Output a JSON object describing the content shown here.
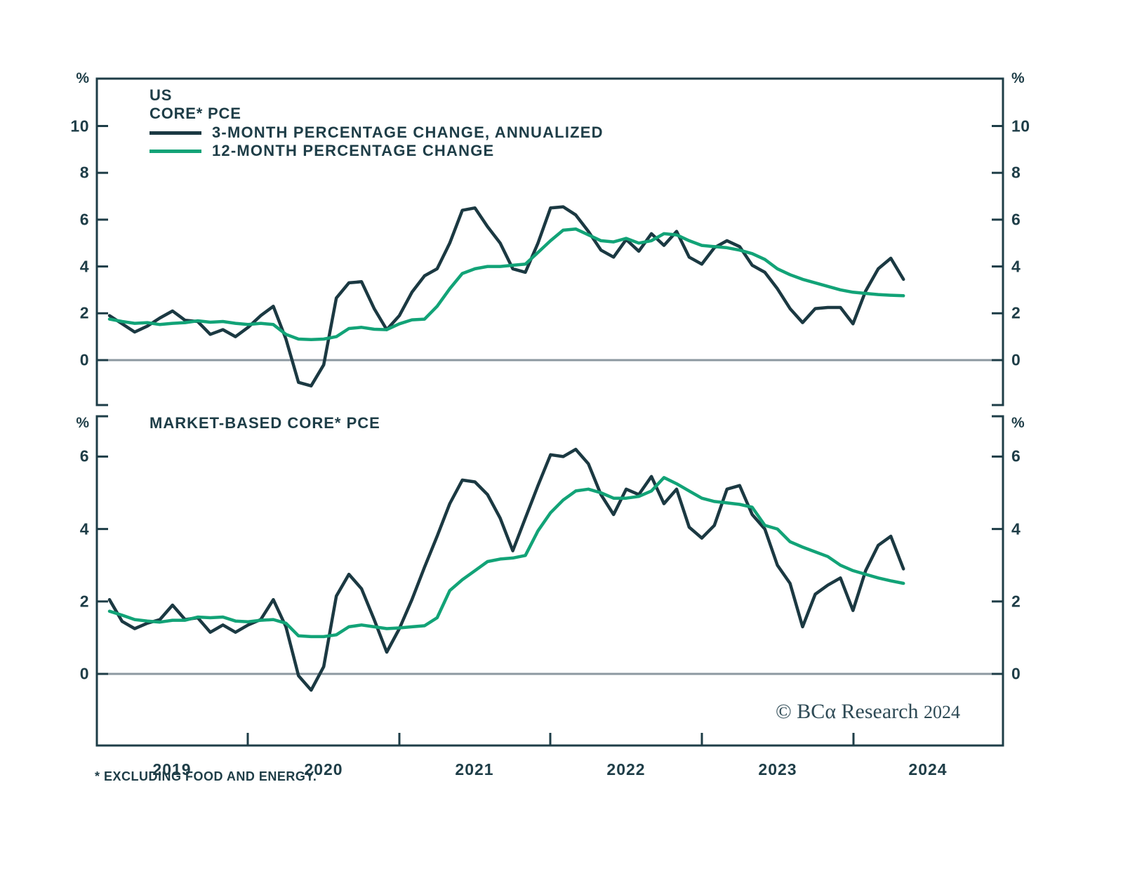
{
  "axes": {
    "percent": "%"
  },
  "top_chart": {
    "title_line1": "US",
    "title_line2": "CORE* PCE",
    "legend": [
      {
        "label": "3-MONTH PERCENTAGE CHANGE, ANNUALIZED",
        "color": "#1b3942"
      },
      {
        "label": "12-MONTH PERCENTAGE CHANGE",
        "color": "#12a377"
      }
    ]
  },
  "bottom_chart": {
    "title": "MARKET-BASED CORE* PCE"
  },
  "x_axis": {
    "year_labels": [
      "2019",
      "2020",
      "2021",
      "2022",
      "2023",
      "2024"
    ]
  },
  "footnote": "* EXCLUDING FOOD AND ENERGY.",
  "copyright": {
    "text": "© BCα Research",
    "year": "2024"
  },
  "colors": {
    "ink": "#1e3d47",
    "line_dark": "#1b3942",
    "line_green": "#12a377",
    "zero_line": "#8c98a0"
  },
  "chart_data": [
    {
      "type": "line",
      "panel": "top",
      "title": "US CORE* PCE",
      "ylabel": "%",
      "x_start": "2019-01",
      "x_end": "2024-04",
      "frequency": "monthly",
      "ylim": [
        -1.9,
        12
      ],
      "y_ticks": [
        0,
        2,
        4,
        6,
        8,
        10
      ],
      "grid": false,
      "zero_line": true,
      "legend_position": "top-left",
      "series": [
        {
          "name": "3-MONTH PERCENTAGE CHANGE, ANNUALIZED",
          "color": "#1b3942",
          "values": [
            1.9,
            1.55,
            1.2,
            1.45,
            1.8,
            2.1,
            1.7,
            1.65,
            1.1,
            1.3,
            1.0,
            1.4,
            1.9,
            2.3,
            0.9,
            -0.95,
            -1.1,
            -0.2,
            2.65,
            3.3,
            3.35,
            2.2,
            1.3,
            1.9,
            2.9,
            3.6,
            3.9,
            5.0,
            6.4,
            6.5,
            5.7,
            5.0,
            3.9,
            3.75,
            5.0,
            6.5,
            6.55,
            6.2,
            5.5,
            4.7,
            4.4,
            5.15,
            4.65,
            5.4,
            4.9,
            5.5,
            4.4,
            4.1,
            4.8,
            5.1,
            4.85,
            4.05,
            3.75,
            3.05,
            2.2,
            1.6,
            2.2,
            2.25,
            2.25,
            1.55,
            2.95,
            3.9,
            4.35,
            3.45
          ]
        },
        {
          "name": "12-MONTH PERCENTAGE CHANGE",
          "color": "#12a377",
          "values": [
            1.75,
            1.65,
            1.57,
            1.6,
            1.52,
            1.57,
            1.6,
            1.68,
            1.62,
            1.65,
            1.57,
            1.52,
            1.57,
            1.52,
            1.1,
            0.9,
            0.88,
            0.9,
            1.0,
            1.35,
            1.4,
            1.32,
            1.3,
            1.55,
            1.72,
            1.75,
            2.3,
            3.05,
            3.7,
            3.9,
            4.0,
            4.0,
            4.05,
            4.1,
            4.6,
            5.1,
            5.55,
            5.6,
            5.35,
            5.1,
            5.05,
            5.2,
            5.0,
            5.1,
            5.4,
            5.35,
            5.1,
            4.9,
            4.85,
            4.8,
            4.7,
            4.55,
            4.3,
            3.9,
            3.65,
            3.45,
            3.3,
            3.15,
            3.0,
            2.9,
            2.85,
            2.8,
            2.77,
            2.75
          ]
        }
      ]
    },
    {
      "type": "line",
      "panel": "bottom",
      "title": "MARKET-BASED CORE* PCE",
      "ylabel": "%",
      "x_start": "2019-01",
      "x_end": "2024-04",
      "frequency": "monthly",
      "ylim": [
        -2,
        7.1
      ],
      "y_ticks": [
        0,
        2,
        4,
        6
      ],
      "grid": false,
      "zero_line": true,
      "series": [
        {
          "name": "3-MONTH PERCENTAGE CHANGE, ANNUALIZED",
          "color": "#1b3942",
          "values": [
            2.05,
            1.45,
            1.25,
            1.4,
            1.5,
            1.9,
            1.5,
            1.55,
            1.15,
            1.35,
            1.15,
            1.35,
            1.5,
            2.05,
            1.3,
            -0.05,
            -0.45,
            0.2,
            2.15,
            2.75,
            2.35,
            1.5,
            0.6,
            1.25,
            2.05,
            2.95,
            3.8,
            4.7,
            5.35,
            5.3,
            4.95,
            4.3,
            3.4,
            4.3,
            5.2,
            6.05,
            6.0,
            6.2,
            5.8,
            4.95,
            4.4,
            5.1,
            4.95,
            5.45,
            4.7,
            5.1,
            4.05,
            3.75,
            4.1,
            5.1,
            5.2,
            4.4,
            4.0,
            3.0,
            2.5,
            1.3,
            2.2,
            2.45,
            2.65,
            1.75,
            2.85,
            3.55,
            3.8,
            2.9
          ]
        },
        {
          "name": "12-MONTH PERCENTAGE CHANGE",
          "color": "#12a377",
          "values": [
            1.73,
            1.62,
            1.5,
            1.46,
            1.43,
            1.48,
            1.48,
            1.57,
            1.55,
            1.57,
            1.46,
            1.44,
            1.48,
            1.5,
            1.4,
            1.05,
            1.03,
            1.03,
            1.08,
            1.3,
            1.35,
            1.3,
            1.25,
            1.27,
            1.3,
            1.33,
            1.55,
            2.3,
            2.6,
            2.85,
            3.1,
            3.17,
            3.2,
            3.27,
            3.95,
            4.45,
            4.8,
            5.05,
            5.1,
            5.0,
            4.85,
            4.85,
            4.9,
            5.05,
            5.42,
            5.25,
            5.05,
            4.85,
            4.76,
            4.72,
            4.68,
            4.6,
            4.1,
            4.0,
            3.65,
            3.5,
            3.37,
            3.24,
            3.0,
            2.85,
            2.75,
            2.65,
            2.57,
            2.5
          ]
        }
      ]
    }
  ]
}
